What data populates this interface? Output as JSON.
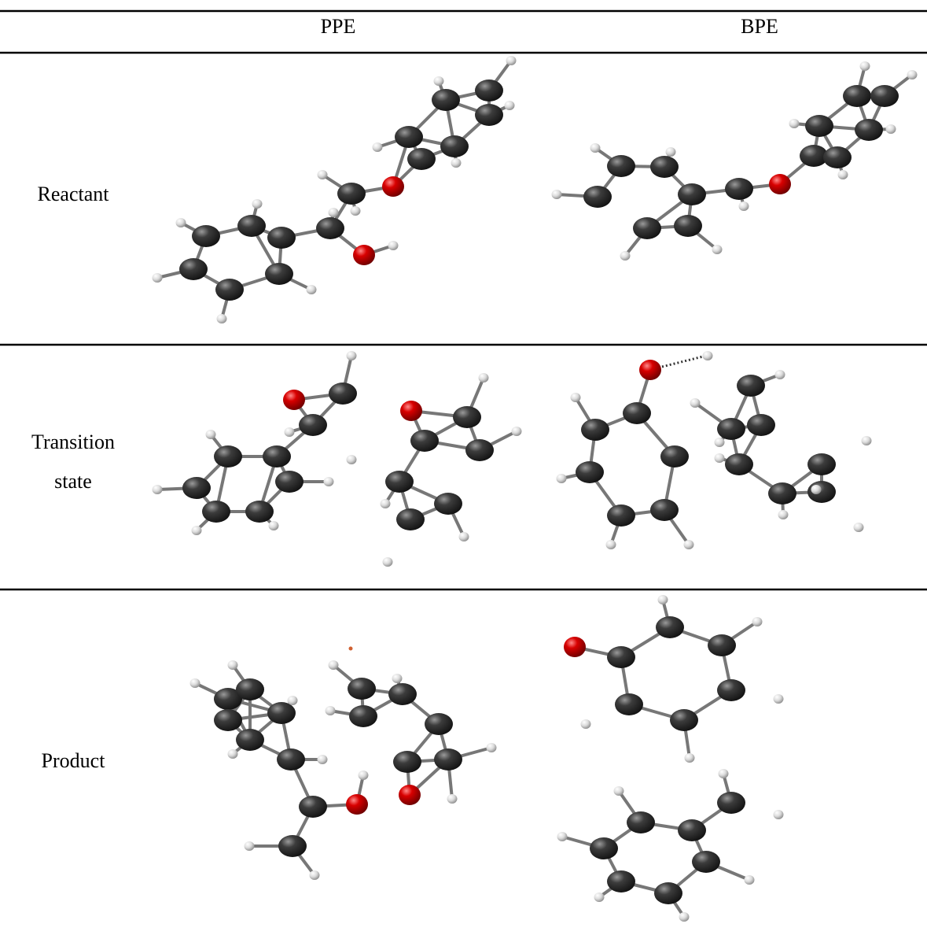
{
  "table": {
    "columns": [
      "PPE",
      "BPE"
    ],
    "rows": [
      {
        "label": [
          "Reactant"
        ]
      },
      {
        "label": [
          "Transition",
          "state"
        ]
      },
      {
        "label": [
          "Product"
        ]
      }
    ]
  }
}
